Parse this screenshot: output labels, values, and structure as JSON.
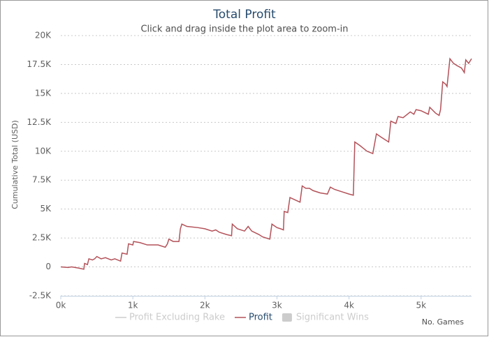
{
  "chart_data": {
    "type": "line",
    "title": "Total Profit",
    "subtitle": "Click and drag inside the plot area to zoom-in",
    "y_label": "Cumulative Total (USD)",
    "x_label": "No. Games",
    "xlim": [
      0,
      5700
    ],
    "ylim": [
      -2500,
      20000
    ],
    "xticks": [
      {
        "value": 0,
        "label": "0k"
      },
      {
        "value": 1000,
        "label": "1k"
      },
      {
        "value": 2000,
        "label": "2k"
      },
      {
        "value": 3000,
        "label": "3k"
      },
      {
        "value": 4000,
        "label": "4k"
      },
      {
        "value": 5000,
        "label": "5k"
      }
    ],
    "yticks": [
      {
        "value": -2500,
        "label": "-2.5K"
      },
      0,
      {
        "value": 2500,
        "label": "2.5K"
      },
      {
        "value": 5000,
        "label": "5K"
      },
      {
        "value": 7500,
        "label": "7.5K"
      },
      {
        "value": 10000,
        "label": "10K"
      },
      {
        "value": 12500,
        "label": "12.5K"
      },
      {
        "value": 15000,
        "label": "15K"
      },
      {
        "value": 17500,
        "label": "17.5K"
      },
      {
        "value": 20000,
        "label": "20K"
      }
    ],
    "grid": true,
    "x": [
      0,
      100,
      150,
      250,
      320,
      330,
      370,
      390,
      440,
      470,
      500,
      560,
      620,
      700,
      750,
      830,
      850,
      920,
      940,
      1000,
      1010,
      1100,
      1200,
      1350,
      1450,
      1480,
      1500,
      1560,
      1640,
      1660,
      1680,
      1750,
      1900,
      2000,
      2100,
      2150,
      2200,
      2300,
      2370,
      2380,
      2450,
      2550,
      2600,
      2650,
      2750,
      2800,
      2900,
      2930,
      3000,
      3050,
      3090,
      3100,
      3150,
      3180,
      3250,
      3320,
      3350,
      3400,
      3450,
      3500,
      3600,
      3700,
      3740,
      3800,
      3900,
      4000,
      4060,
      4080,
      4150,
      4250,
      4330,
      4380,
      4450,
      4550,
      4580,
      4650,
      4680,
      4750,
      4850,
      4900,
      4930,
      5000,
      5100,
      5120,
      5200,
      5250,
      5270,
      5300,
      5340,
      5360,
      5400,
      5450,
      5500,
      5560,
      5600,
      5620,
      5660,
      5700
    ],
    "series": [
      {
        "name": "Profit Excluding Rake",
        "color": "#cccccc",
        "visible": false,
        "symbol": "line"
      },
      {
        "name": "Profit",
        "color": "#b35259",
        "visible": true,
        "symbol": "line",
        "values": [
          0,
          -50,
          0,
          -100,
          -200,
          300,
          200,
          700,
          600,
          700,
          900,
          700,
          800,
          600,
          700,
          500,
          1200,
          1100,
          2000,
          1900,
          2200,
          2100,
          1900,
          1900,
          1700,
          2000,
          2400,
          2200,
          2200,
          3300,
          3700,
          3500,
          3400,
          3300,
          3100,
          3200,
          3000,
          2800,
          2700,
          3700,
          3300,
          3100,
          3500,
          3100,
          2800,
          2600,
          2400,
          3700,
          3400,
          3300,
          3200,
          4800,
          4700,
          6000,
          5800,
          5600,
          7000,
          6800,
          6800,
          6600,
          6400,
          6300,
          6900,
          6700,
          6500,
          6300,
          6200,
          10800,
          10500,
          10000,
          9800,
          11500,
          11200,
          10800,
          12600,
          12400,
          13000,
          12900,
          13400,
          13200,
          13600,
          13500,
          13200,
          13800,
          13300,
          13100,
          13600,
          16000,
          15800,
          15600,
          18000,
          17600,
          17400,
          17200,
          16800,
          17900,
          17600,
          18000
        ]
      },
      {
        "name": "Significant Wins",
        "color": "#cccccc",
        "visible": false,
        "symbol": "box"
      }
    ]
  }
}
